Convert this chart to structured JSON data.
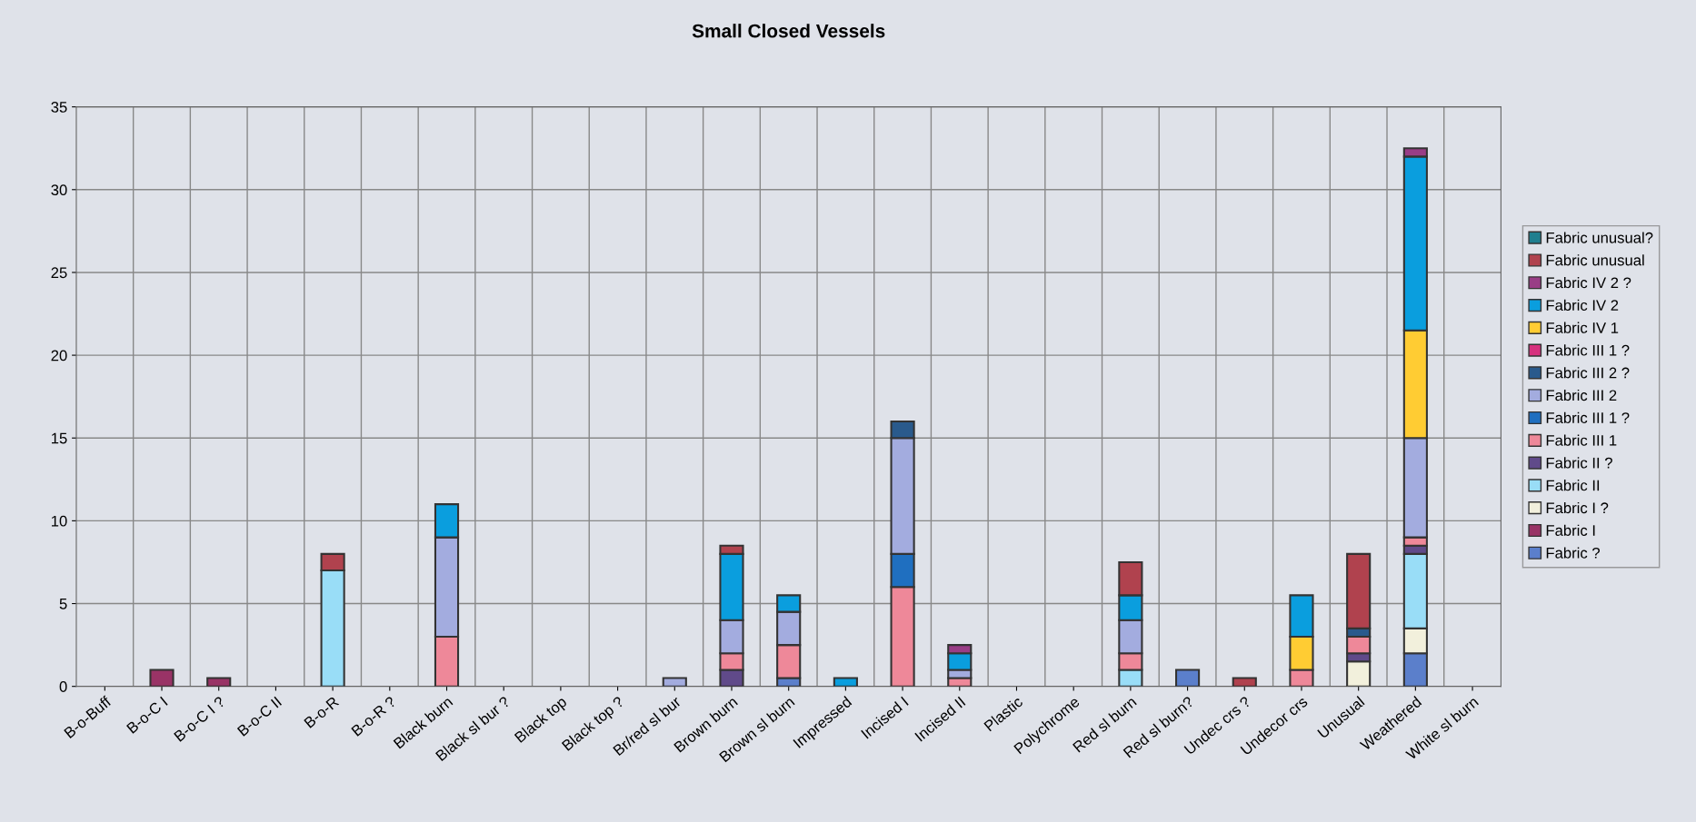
{
  "chart_data": {
    "type": "bar",
    "title": "Small Closed Vessels",
    "stacked": true,
    "grid": true,
    "legend": "right",
    "ylim": [
      0,
      35
    ],
    "yticks": [
      0,
      5,
      10,
      15,
      20,
      25,
      30,
      35
    ],
    "categories": [
      "B-o-Buff",
      "B-o-C I",
      "B-o-C I ?",
      "B-o-C II",
      "B-o-R",
      "B-o-R ?",
      "Black burn",
      "Black sl bur ?",
      "Black top",
      "Black top ?",
      "Br/red sl bur",
      "Brown burn",
      "Brown sl burn",
      "Impressed",
      "Incised I",
      "Incised II",
      "Plastic",
      "Polychrome",
      "Red sl burn",
      "Red sl burn?",
      "Undec crs ?",
      "Undecor crs",
      "Unusual",
      "Weathered",
      "White sl burn"
    ],
    "series": [
      {
        "name": "Fabric ?",
        "color": "#5b7fcb",
        "values": [
          0,
          0,
          0,
          0,
          0,
          0,
          0,
          0,
          0,
          0,
          0,
          0,
          0.5,
          0,
          0,
          0,
          0,
          0,
          0,
          1,
          0,
          0,
          0,
          2,
          0
        ]
      },
      {
        "name": "Fabric I",
        "color": "#993366",
        "values": [
          0,
          1,
          0.5,
          0,
          0,
          0,
          0,
          0,
          0,
          0,
          0,
          0,
          0,
          0,
          0,
          0,
          0,
          0,
          0,
          0,
          0,
          0,
          0,
          0,
          0
        ]
      },
      {
        "name": "Fabric I ?",
        "color": "#f2f0dc",
        "values": [
          0,
          0,
          0,
          0,
          0,
          0,
          0,
          0,
          0,
          0,
          0,
          0,
          0,
          0,
          0,
          0,
          0,
          0,
          0,
          0,
          0,
          0,
          1.5,
          1.5,
          0
        ]
      },
      {
        "name": "Fabric II",
        "color": "#99ddf7",
        "values": [
          0,
          0,
          0,
          0,
          7,
          0,
          0,
          0,
          0,
          0,
          0,
          0,
          0,
          0,
          0,
          0,
          0,
          0,
          1,
          0,
          0,
          0,
          0,
          4.5,
          0
        ]
      },
      {
        "name": "Fabric II ?",
        "color": "#604a8a",
        "values": [
          0,
          0,
          0,
          0,
          0,
          0,
          0,
          0,
          0,
          0,
          0,
          1,
          0,
          0,
          0,
          0,
          0,
          0,
          0,
          0,
          0,
          0,
          0.5,
          0.5,
          0
        ]
      },
      {
        "name": "Fabric III 1",
        "color": "#ee8899",
        "values": [
          0,
          0,
          0,
          0,
          0,
          0,
          3,
          0,
          0,
          0,
          0,
          1,
          2,
          0,
          6,
          0.5,
          0,
          0,
          1,
          0,
          0,
          1,
          1,
          0.5,
          0
        ]
      },
      {
        "name": "Fabric III 1 ?",
        "color": "#1f6fc0",
        "values": [
          0,
          0,
          0,
          0,
          0,
          0,
          0,
          0,
          0,
          0,
          0,
          0,
          0,
          0,
          2,
          0,
          0,
          0,
          0,
          0,
          0,
          0,
          0,
          0,
          0
        ]
      },
      {
        "name": "Fabric III 2",
        "color": "#a3acdf",
        "values": [
          0,
          0,
          0,
          0,
          0,
          0,
          6,
          0,
          0,
          0,
          0.5,
          2,
          2,
          0,
          7,
          0.5,
          0,
          0,
          2,
          0,
          0,
          0,
          0,
          6,
          0
        ]
      },
      {
        "name": "Fabric III 2 ?",
        "color": "#2a5a8c",
        "values": [
          0,
          0,
          0,
          0,
          0,
          0,
          0,
          0,
          0,
          0,
          0,
          0,
          0,
          0,
          1,
          0,
          0,
          0,
          0,
          0,
          0,
          0,
          0.5,
          0,
          0
        ]
      },
      {
        "name": "Fabric III 1 ?",
        "color": "#d6317e",
        "values": [
          0,
          0,
          0,
          0,
          0,
          0,
          0,
          0,
          0,
          0,
          0,
          0,
          0,
          0,
          0,
          0,
          0,
          0,
          0,
          0,
          0,
          0,
          0,
          0,
          0
        ]
      },
      {
        "name": "Fabric IV 1",
        "color": "#ffcc33",
        "values": [
          0,
          0,
          0,
          0,
          0,
          0,
          0,
          0,
          0,
          0,
          0,
          0,
          0,
          0,
          0,
          0,
          0,
          0,
          0,
          0,
          0,
          2,
          0,
          6.5,
          0
        ]
      },
      {
        "name": "Fabric IV 2",
        "color": "#0a9ede",
        "values": [
          0,
          0,
          0,
          0,
          0,
          0,
          2,
          0,
          0,
          0,
          0,
          4,
          1,
          0.5,
          0,
          1,
          0,
          0,
          1.5,
          0,
          0,
          2.5,
          0,
          10.5,
          0
        ]
      },
      {
        "name": "Fabric IV 2 ?",
        "color": "#993d86",
        "values": [
          0,
          0,
          0,
          0,
          0,
          0,
          0,
          0,
          0,
          0,
          0,
          0,
          0,
          0,
          0,
          0.5,
          0,
          0,
          0,
          0,
          0,
          0,
          0,
          0.5,
          0
        ]
      },
      {
        "name": "Fabric unusual",
        "color": "#b0424e",
        "values": [
          0,
          0,
          0,
          0,
          1,
          0,
          0,
          0,
          0,
          0,
          0,
          0.5,
          0,
          0,
          0,
          0,
          0,
          0,
          2,
          0,
          0.5,
          0,
          4.5,
          0,
          0
        ]
      },
      {
        "name": "Fabric unusual?",
        "color": "#1f7f8f",
        "values": [
          0,
          0,
          0,
          0,
          0,
          0,
          0,
          0,
          0,
          0,
          0,
          0,
          0,
          0,
          0,
          0,
          0,
          0,
          0,
          0,
          0,
          0,
          0,
          0,
          0
        ]
      }
    ]
  }
}
